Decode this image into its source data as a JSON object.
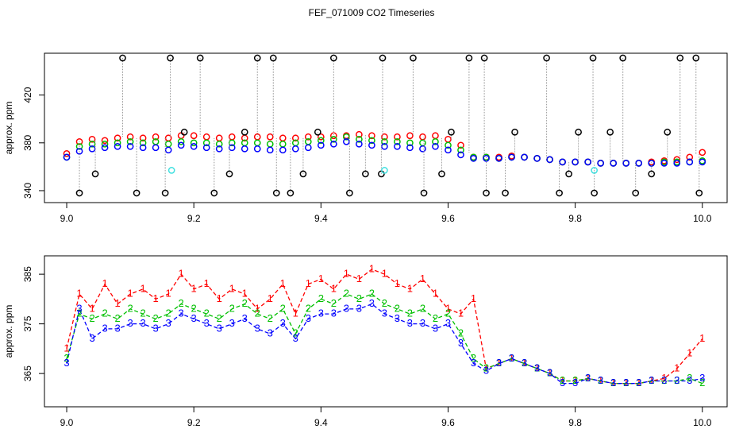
{
  "title": "FEF_071009  CO2 Timeseries",
  "chart_data": [
    {
      "type": "scatter",
      "ylabel": "approx. ppm",
      "xlim": [
        8.965,
        10.039
      ],
      "ylim": [
        330,
        455
      ],
      "xticks": [
        {
          "value": 9,
          "label": "9.0"
        },
        9.2,
        9.4,
        9.6,
        9.8,
        {
          "value": 10,
          "label": "10.0"
        }
      ],
      "yticks": [
        340,
        380,
        420
      ],
      "x": [
        9.0,
        9.02,
        9.04,
        9.06,
        9.08,
        9.1,
        9.12,
        9.14,
        9.16,
        9.18,
        9.2,
        9.22,
        9.24,
        9.26,
        9.28,
        9.3,
        9.32,
        9.34,
        9.36,
        9.38,
        9.4,
        9.42,
        9.44,
        9.46,
        9.48,
        9.5,
        9.52,
        9.54,
        9.56,
        9.58,
        9.6,
        9.62,
        9.64,
        9.66,
        9.68,
        9.7,
        9.72,
        9.74,
        9.76,
        9.78,
        9.8,
        9.82,
        9.84,
        9.86,
        9.88,
        9.9,
        9.92,
        9.94,
        9.96,
        9.98,
        10.0
      ],
      "series": [
        {
          "color": "#ff0000",
          "values": [
            371,
            381,
            383,
            382,
            384,
            385,
            384,
            385,
            384,
            386,
            386,
            385,
            384,
            385,
            384,
            385,
            385,
            384,
            384,
            385,
            385,
            386,
            386,
            387,
            386,
            385,
            385,
            386,
            385,
            386,
            383,
            378,
            368,
            368,
            368,
            369,
            368,
            367,
            366,
            364,
            364,
            364,
            363,
            363,
            363,
            363,
            364,
            365,
            366,
            368,
            372
          ]
        },
        {
          "color": "#00c000",
          "values": [
            368,
            377,
            379,
            379,
            380,
            381,
            380,
            381,
            379,
            381,
            380,
            380,
            379,
            380,
            380,
            380,
            379,
            379,
            380,
            381,
            382,
            383,
            385,
            383,
            382,
            381,
            381,
            380,
            380,
            381,
            378,
            374,
            368,
            368,
            367,
            368,
            368,
            367,
            366,
            364,
            364,
            364,
            363,
            363,
            363,
            363,
            363,
            364,
            364,
            364,
            365
          ]
        },
        {
          "color": "#0000ff",
          "values": [
            368,
            373,
            375,
            376,
            377,
            377,
            376,
            376,
            374,
            378,
            377,
            376,
            375,
            376,
            375,
            375,
            374,
            374,
            375,
            376,
            378,
            379,
            381,
            379,
            378,
            377,
            377,
            376,
            375,
            377,
            374,
            370,
            367,
            367,
            367,
            368,
            368,
            367,
            366,
            364,
            364,
            364,
            363,
            363,
            363,
            363,
            363,
            363,
            363,
            364,
            364
          ]
        },
        {
          "color": "#000000",
          "stem": true,
          "x": [
            9.02,
            9.045,
            9.088,
            9.11,
            9.155,
            9.163,
            9.185,
            9.21,
            9.232,
            9.256,
            9.28,
            9.3,
            9.325,
            9.33,
            9.352,
            9.372,
            9.395,
            9.42,
            9.445,
            9.47,
            9.495,
            9.497,
            9.545,
            9.562,
            9.59,
            9.605,
            9.633,
            9.657,
            9.66,
            9.69,
            9.705,
            9.755,
            9.775,
            9.79,
            9.805,
            9.828,
            9.83,
            9.855,
            9.875,
            9.895,
            9.92,
            9.945,
            9.965,
            9.99,
            9.995
          ],
          "values": [
            338,
            354,
            451,
            338,
            338,
            451,
            389,
            451,
            338,
            354,
            389,
            451,
            451,
            338,
            338,
            354,
            389,
            451,
            338,
            354,
            354,
            451,
            451,
            338,
            354,
            389,
            451,
            451,
            338,
            338,
            389,
            451,
            338,
            354,
            389,
            451,
            338,
            389,
            451,
            338,
            354,
            389,
            451,
            451,
            338
          ]
        },
        {
          "color": "#40e0e0",
          "x": [
            9.165,
            9.5,
            9.83
          ],
          "values": [
            357,
            357,
            357
          ]
        }
      ]
    },
    {
      "type": "line",
      "ylabel": "approx. ppm",
      "xlim": [
        8.965,
        10.039
      ],
      "ylim": [
        358.3,
        388.7
      ],
      "xticks": [
        {
          "value": 9,
          "label": "9.0"
        },
        9.2,
        9.4,
        9.6,
        9.8,
        {
          "value": 10,
          "label": "10.0"
        }
      ],
      "yticks": [
        365,
        375,
        385
      ],
      "x": [
        9.0,
        9.02,
        9.04,
        9.06,
        9.08,
        9.1,
        9.12,
        9.14,
        9.16,
        9.18,
        9.2,
        9.22,
        9.24,
        9.26,
        9.28,
        9.3,
        9.32,
        9.34,
        9.36,
        9.38,
        9.4,
        9.42,
        9.44,
        9.46,
        9.48,
        9.5,
        9.52,
        9.54,
        9.56,
        9.58,
        9.6,
        9.62,
        9.64,
        9.66,
        9.68,
        9.7,
        9.72,
        9.74,
        9.76,
        9.78,
        9.8,
        9.82,
        9.84,
        9.86,
        9.88,
        9.9,
        9.92,
        9.94,
        9.96,
        9.98,
        10.0
      ],
      "series": [
        {
          "color": "#ff0000",
          "marker": "1",
          "values": [
            370,
            381,
            378,
            383,
            379,
            381,
            382,
            380,
            381,
            385,
            382,
            383,
            380,
            382,
            381,
            378,
            380,
            383,
            377,
            383,
            384,
            382,
            385,
            384,
            386,
            385,
            383,
            382,
            384,
            381,
            378,
            377,
            380,
            366,
            367,
            368,
            367,
            366,
            365,
            363.5,
            363.5,
            364,
            363.5,
            363,
            363,
            363,
            363.5,
            364,
            366,
            369,
            372
          ]
        },
        {
          "color": "#00c000",
          "marker": "2",
          "values": [
            368,
            377,
            376,
            377,
            376,
            378,
            377,
            376,
            377,
            379,
            378,
            377,
            376,
            378,
            379,
            377,
            376,
            378,
            373,
            378,
            380,
            379,
            381,
            380,
            381,
            379,
            378,
            377,
            378,
            376,
            377,
            373,
            368,
            366,
            367,
            368,
            367,
            366,
            365,
            363.5,
            363.5,
            364,
            363.5,
            363,
            363,
            363,
            363.5,
            363.5,
            363.5,
            364,
            363
          ]
        },
        {
          "color": "#0000ff",
          "marker": "3",
          "values": [
            367,
            378,
            372,
            374,
            374,
            375,
            375,
            374,
            375,
            377,
            376,
            375,
            374,
            375,
            376,
            374,
            373,
            375,
            372,
            376,
            377,
            377,
            378,
            378,
            379,
            377,
            376,
            375,
            375,
            374,
            375,
            371,
            367,
            365.5,
            367,
            368,
            367,
            366,
            365,
            363,
            363,
            364,
            363.5,
            363,
            363,
            363,
            363.5,
            363.5,
            363.5,
            363.5,
            364
          ]
        }
      ]
    }
  ]
}
